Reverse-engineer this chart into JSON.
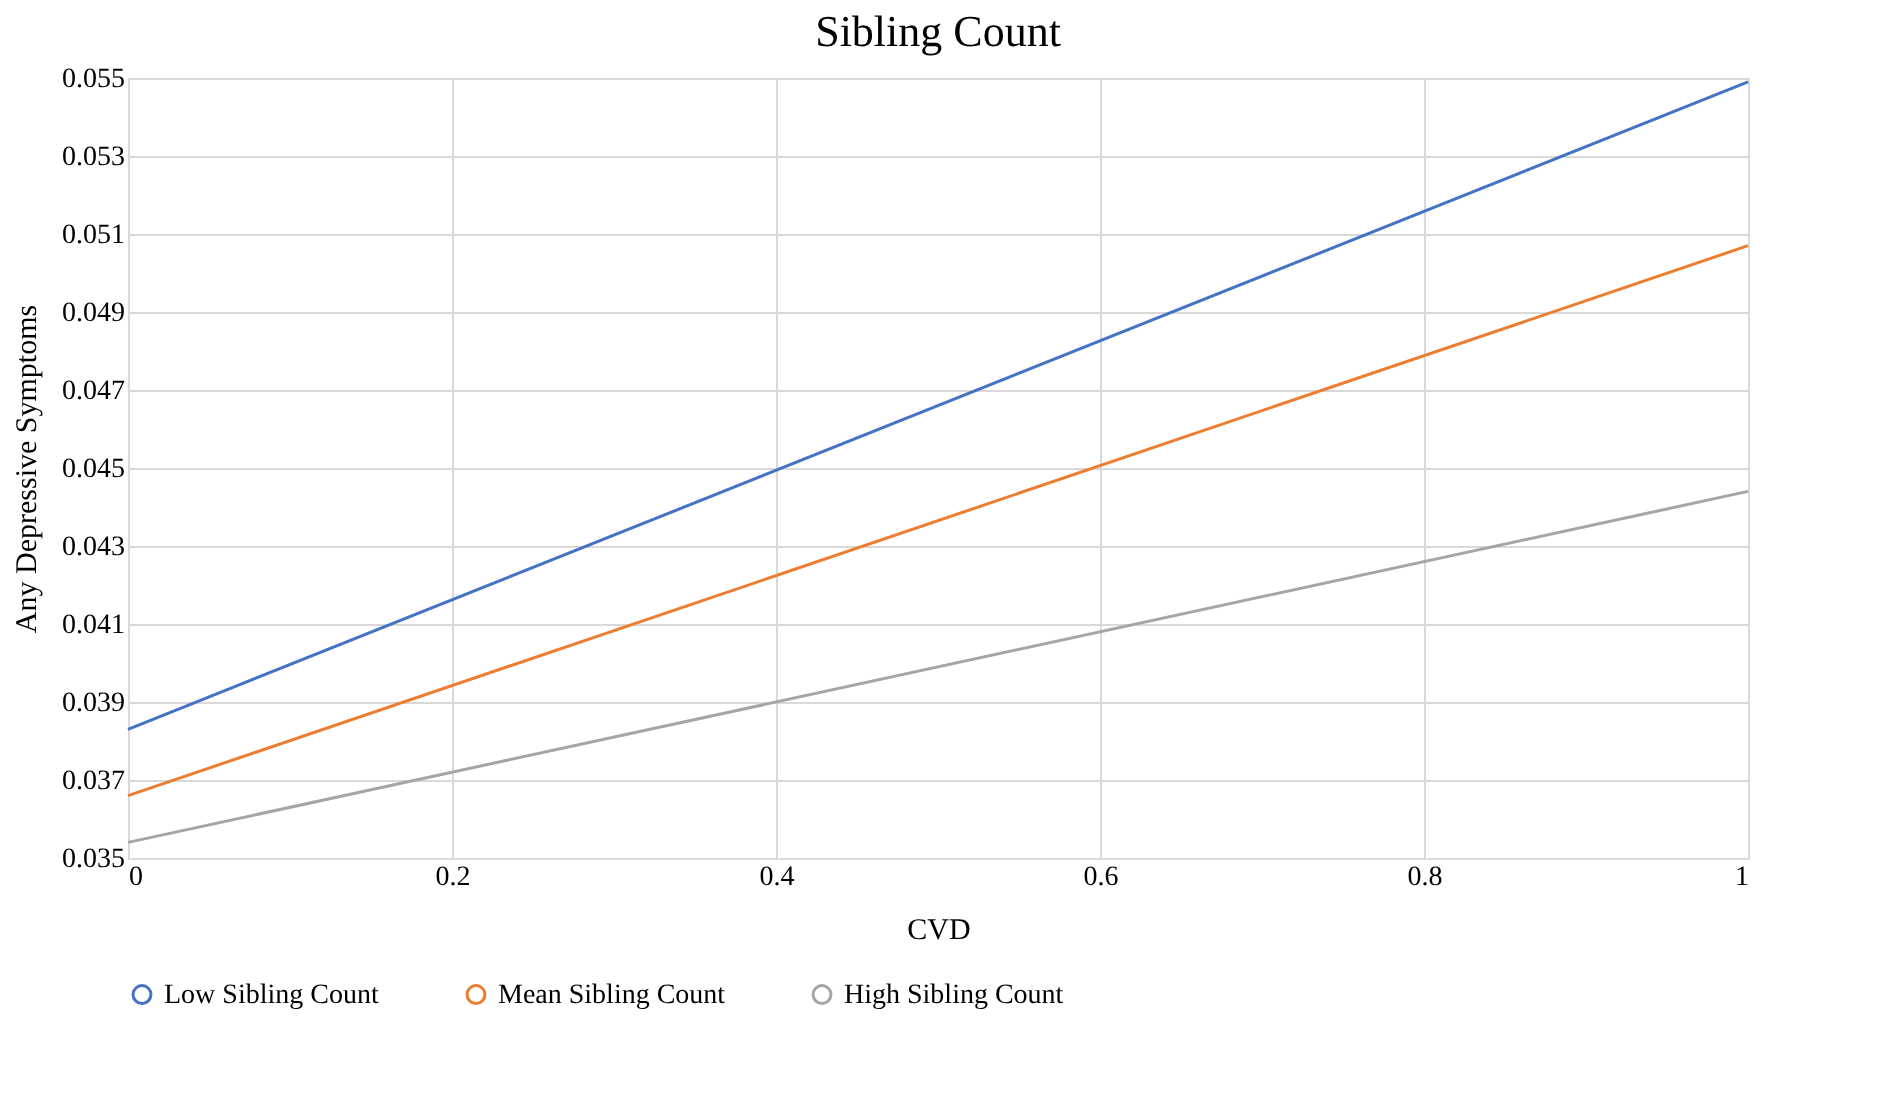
{
  "chart_data": {
    "type": "line",
    "title": "Sibling Count",
    "xlabel": "CVD",
    "ylabel": "Any Depressive Symptoms",
    "x": [
      0,
      1
    ],
    "series": [
      {
        "name": "Low Sibling Count",
        "color": "#4472c4",
        "values": [
          0.0383,
          0.0549
        ]
      },
      {
        "name": "Mean Sibling Count",
        "color": "#ed7d31",
        "values": [
          0.0366,
          0.0507
        ]
      },
      {
        "name": "High Sibling Count",
        "color": "#a5a5a5",
        "values": [
          0.0354,
          0.0444
        ]
      }
    ],
    "xlim": [
      0,
      1
    ],
    "xticks": [
      0,
      0.2,
      0.4,
      0.6,
      0.8,
      1
    ],
    "ylim": [
      0.035,
      0.055
    ],
    "yticks": [
      0.035,
      0.037,
      0.039,
      0.041,
      0.043,
      0.045,
      0.047,
      0.049,
      0.051,
      0.053,
      0.055
    ],
    "grid": true,
    "legend": "bottom",
    "marker": "none",
    "line_style": "solid"
  }
}
